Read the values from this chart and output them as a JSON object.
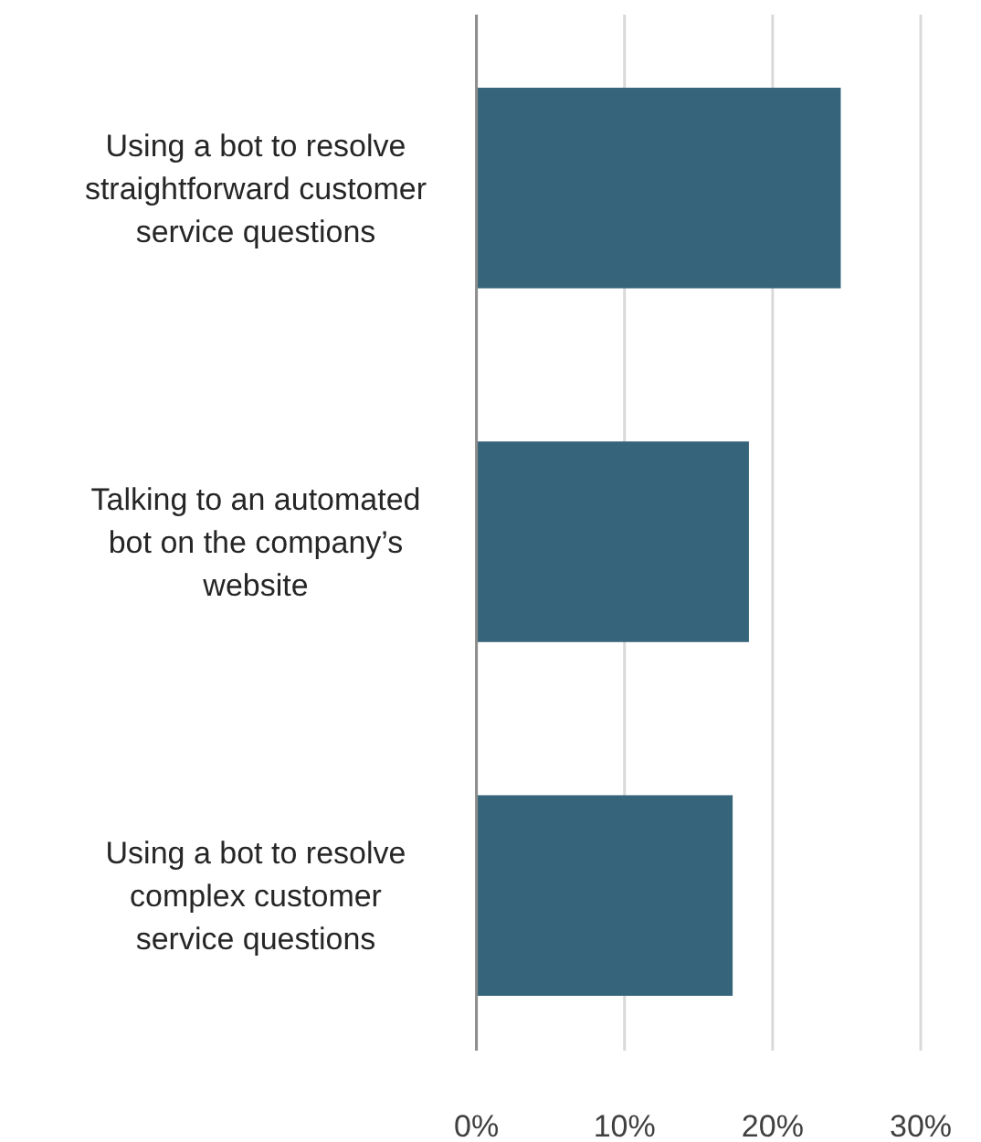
{
  "chart_data": {
    "type": "bar",
    "orientation": "horizontal",
    "categories": [
      "Using a bot to resolve straightforward customer service questions",
      "Talking to an automated bot on the company’s website",
      "Using a bot to resolve complex customer service questions"
    ],
    "values": [
      24.6,
      18.4,
      17.3
    ],
    "color": "#36647a",
    "xlim": [
      0,
      30
    ],
    "xticks": [
      {
        "value": 0,
        "label": "0%"
      },
      {
        "value": 10,
        "label": "10%"
      },
      {
        "value": 20,
        "label": "20%"
      },
      {
        "value": 30,
        "label": "30%"
      }
    ],
    "grid": "x"
  }
}
